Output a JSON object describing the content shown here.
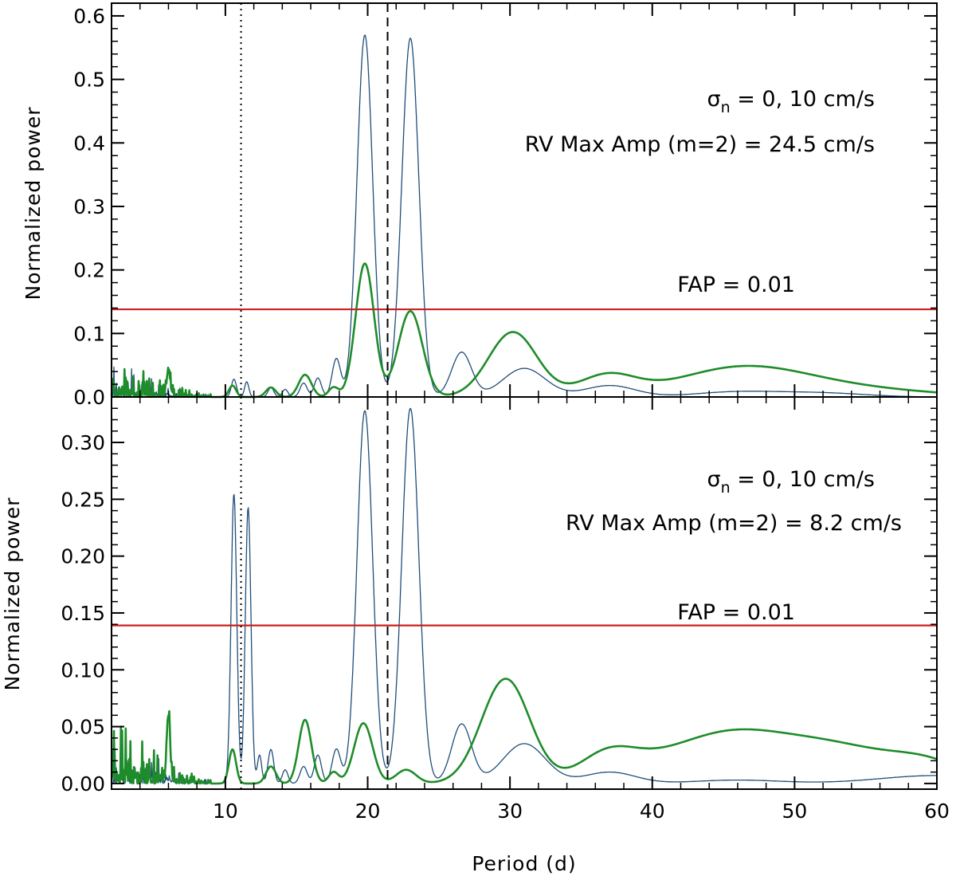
{
  "figure": {
    "xlabel": "Period (d)",
    "xlim": [
      2,
      60
    ],
    "x_ticks": [
      10,
      20,
      30,
      40,
      50,
      60
    ],
    "colors": {
      "blue": "#1f4e79",
      "green": "#1e8c2a",
      "fap": "#cc1f1f",
      "axis": "#000000"
    }
  },
  "chart_data": [
    {
      "type": "line",
      "panel": "top",
      "ylabel": "Normalized power",
      "ylim": [
        0,
        0.62
      ],
      "y_ticks": [
        "0.0",
        "0.1",
        "0.2",
        "0.3",
        "0.4",
        "0.5",
        "0.6"
      ],
      "y_tick_values": [
        0,
        0.1,
        0.2,
        0.3,
        0.4,
        0.5,
        0.6
      ],
      "annotation_sigma_sym": "σ",
      "annotation_sigma_sub": "n",
      "annotation_sigma_rest": " = 0, 10 cm/s",
      "annotation_amp": "RV Max Amp (m=2) = 24.5 cm/s",
      "fap_label": "FAP = 0.01",
      "fap_level": 0.138,
      "vlines": [
        {
          "x": 11.1,
          "style": "dotted"
        },
        {
          "x": 21.4,
          "style": "dashed"
        }
      ],
      "series": [
        {
          "name": "sigma_n = 0 cm/s",
          "color": "#1f4e79",
          "peaks": [
            [
              10.6,
              0.028,
              0.18
            ],
            [
              11.5,
              0.024,
              0.15
            ],
            [
              13.2,
              0.015,
              0.2
            ],
            [
              14.2,
              0.012,
              0.2
            ],
            [
              15.5,
              0.022,
              0.25
            ],
            [
              16.5,
              0.03,
              0.25
            ],
            [
              17.8,
              0.06,
              0.3
            ],
            [
              19.8,
              0.57,
              0.55
            ],
            [
              23.0,
              0.565,
              0.6
            ],
            [
              26.6,
              0.07,
              0.7
            ],
            [
              31.0,
              0.045,
              1.5
            ],
            [
              37.0,
              0.018,
              1.8
            ],
            [
              46.0,
              0.008,
              3.0
            ],
            [
              52.0,
              0.006,
              3.0
            ]
          ],
          "noise": [
            0.05,
            0.02
          ]
        },
        {
          "name": "sigma_n = 10 cm/s",
          "color": "#1e8c2a",
          "peaks": [
            [
              6.0,
              0.04,
              0.12
            ],
            [
              10.5,
              0.018,
              0.25
            ],
            [
              13.2,
              0.015,
              0.35
            ],
            [
              15.6,
              0.035,
              0.45
            ],
            [
              17.6,
              0.015,
              0.35
            ],
            [
              19.8,
              0.21,
              0.65
            ],
            [
              23.0,
              0.135,
              0.85
            ],
            [
              30.2,
              0.102,
              1.7
            ],
            [
              36.8,
              0.032,
              2.0
            ],
            [
              46.0,
              0.04,
              4.5
            ],
            [
              52.5,
              0.015,
              6.0
            ]
          ],
          "noise": [
            0.06,
            0.025
          ]
        }
      ]
    },
    {
      "type": "line",
      "panel": "bottom",
      "ylabel": "Normalized power",
      "ylim": [
        -0.005,
        0.34
      ],
      "y_ticks": [
        "0.00",
        "0.05",
        "0.10",
        "0.15",
        "0.20",
        "0.25",
        "0.30"
      ],
      "y_tick_values": [
        0,
        0.05,
        0.1,
        0.15,
        0.2,
        0.25,
        0.3
      ],
      "annotation_sigma_sym": "σ",
      "annotation_sigma_sub": "n",
      "annotation_sigma_rest": " = 0, 10 cm/s",
      "annotation_amp": "RV Max Amp (m=2) = 8.2 cm/s",
      "fap_label": "FAP = 0.01",
      "fap_level": 0.139,
      "vlines": [
        {
          "x": 11.1,
          "style": "dotted"
        },
        {
          "x": 21.4,
          "style": "dashed"
        }
      ],
      "series": [
        {
          "name": "sigma_n = 0 cm/s",
          "color": "#1f4e79",
          "peaks": [
            [
              10.6,
              0.255,
              0.2
            ],
            [
              11.6,
              0.243,
              0.2
            ],
            [
              12.4,
              0.025,
              0.15
            ],
            [
              13.2,
              0.03,
              0.2
            ],
            [
              14.2,
              0.012,
              0.2
            ],
            [
              15.5,
              0.015,
              0.25
            ],
            [
              16.5,
              0.025,
              0.25
            ],
            [
              17.8,
              0.03,
              0.3
            ],
            [
              19.8,
              0.328,
              0.55
            ],
            [
              23.0,
              0.33,
              0.6
            ],
            [
              26.6,
              0.052,
              0.7
            ],
            [
              31.0,
              0.035,
              1.5
            ],
            [
              37.0,
              0.01,
              1.8
            ],
            [
              46.0,
              0.003,
              3.0
            ],
            [
              60.0,
              0.007,
              4.0
            ]
          ],
          "noise": [
            0.05,
            0.02
          ]
        },
        {
          "name": "sigma_n = 10 cm/s",
          "color": "#1e8c2a",
          "peaks": [
            [
              6.0,
              0.06,
              0.12
            ],
            [
              10.5,
              0.03,
              0.25
            ],
            [
              13.2,
              0.015,
              0.35
            ],
            [
              15.6,
              0.056,
              0.45
            ],
            [
              17.6,
              0.01,
              0.35
            ],
            [
              19.7,
              0.053,
              0.65
            ],
            [
              22.7,
              0.012,
              0.7
            ],
            [
              29.7,
              0.092,
              1.7
            ],
            [
              36.8,
              0.022,
              2.0
            ],
            [
              40.0,
              0.012,
              3.0
            ],
            [
              45.0,
              0.03,
              3.5
            ],
            [
              52.0,
              0.035,
              5.0
            ],
            [
              59.5,
              0.012,
              2.5
            ]
          ],
          "noise": [
            0.06,
            0.025
          ]
        }
      ]
    }
  ]
}
